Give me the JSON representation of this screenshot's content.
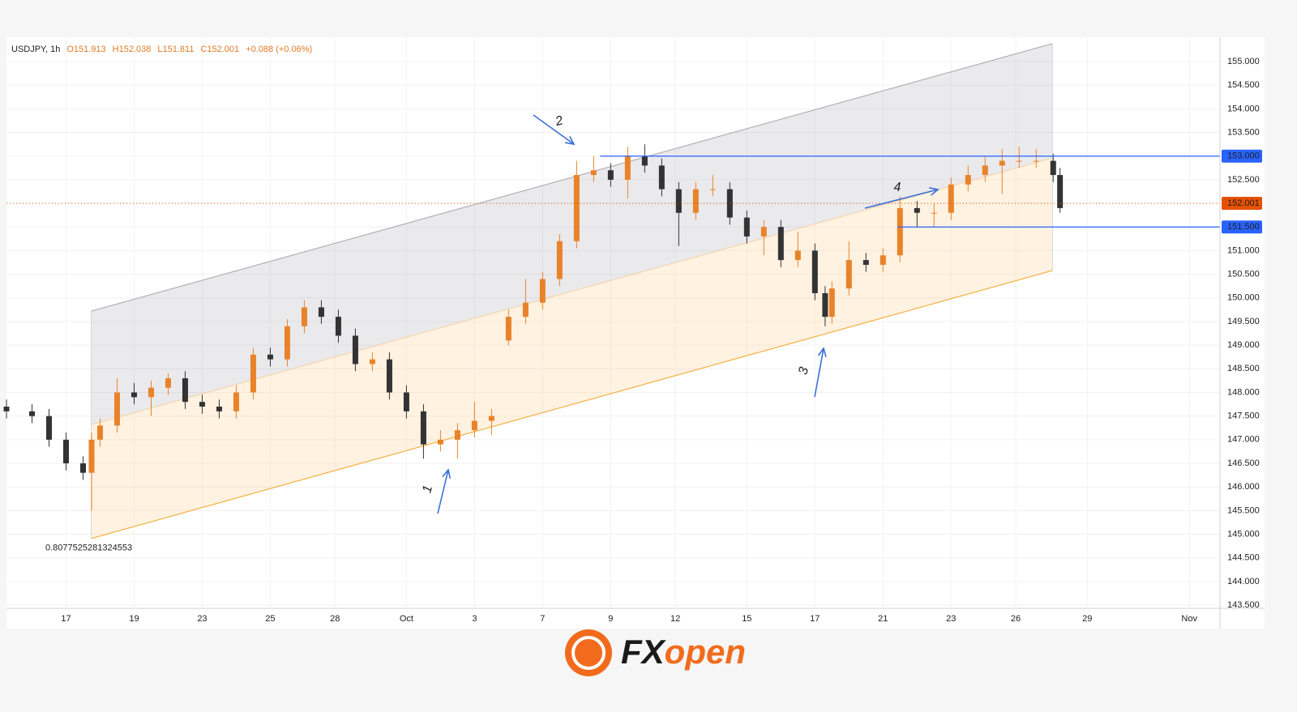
{
  "header": {
    "symbol": "USDJPY, 1h",
    "open": "O151.913",
    "high": "H152.038",
    "low": "L151.811",
    "close": "C152.001",
    "change": "+0.088 (+0.06%)"
  },
  "chart_data": {
    "type": "candlestick",
    "x": [
      -1.75,
      -1,
      -0.5,
      0,
      0.5,
      0.75,
      1,
      1.5,
      2,
      2.5,
      3,
      3.5,
      4,
      4.5,
      5,
      5.5,
      6,
      6.5,
      7,
      7.5,
      8,
      8.5,
      9,
      9.5,
      10,
      10.5,
      11,
      11.5,
      12,
      12.5,
      13,
      13.5,
      14,
      14.5,
      15,
      15.5,
      16,
      16.5,
      17,
      17.5,
      18,
      18.5,
      19,
      19.5,
      20,
      20.5,
      21,
      21.5,
      22,
      22.3,
      22.5,
      23,
      23.5,
      24,
      24.5,
      25,
      25.5,
      26,
      26.5,
      27,
      27.5,
      28,
      28.5,
      29,
      29.2
    ],
    "open": [
      147.7,
      147.6,
      147.5,
      147.0,
      146.5,
      146.3,
      147.0,
      147.3,
      148.0,
      147.9,
      148.1,
      148.3,
      147.8,
      147.7,
      147.6,
      148.0,
      148.8,
      148.7,
      149.4,
      149.8,
      149.6,
      149.2,
      148.6,
      148.7,
      148.0,
      147.6,
      146.9,
      147.0,
      147.2,
      147.4,
      149.1,
      149.6,
      149.9,
      150.4,
      151.2,
      152.6,
      152.7,
      152.5,
      153.0,
      152.8,
      152.3,
      151.8,
      152.3,
      152.3,
      151.7,
      151.3,
      151.5,
      150.8,
      151.0,
      150.1,
      149.6,
      150.2,
      150.8,
      150.7,
      150.9,
      151.9,
      151.8,
      151.8,
      152.4,
      152.6,
      152.8,
      152.9,
      152.9,
      152.9,
      152.6
    ],
    "high": [
      147.85,
      147.75,
      147.65,
      147.15,
      146.65,
      147.15,
      147.45,
      148.3,
      148.2,
      148.25,
      148.4,
      148.45,
      147.95,
      147.85,
      148.15,
      148.95,
      148.95,
      149.55,
      149.95,
      149.95,
      149.75,
      149.35,
      148.85,
      148.85,
      148.15,
      147.75,
      147.2,
      147.35,
      147.8,
      147.65,
      149.75,
      150.4,
      150.55,
      151.35,
      152.9,
      153.0,
      152.85,
      153.2,
      153.25,
      152.95,
      152.45,
      152.45,
      152.6,
      152.45,
      151.85,
      151.65,
      151.65,
      151.4,
      151.15,
      150.25,
      150.35,
      151.2,
      150.95,
      151.05,
      152.15,
      152.05,
      152.0,
      152.55,
      152.8,
      153.0,
      153.15,
      153.2,
      153.15,
      153.05,
      152.75
    ],
    "low": [
      147.45,
      147.35,
      146.85,
      146.35,
      146.15,
      145.5,
      146.85,
      147.15,
      147.75,
      147.5,
      147.95,
      147.65,
      147.55,
      147.45,
      147.45,
      147.85,
      148.55,
      148.55,
      149.25,
      149.45,
      149.05,
      148.45,
      148.45,
      147.85,
      147.45,
      146.6,
      146.75,
      146.6,
      147.05,
      147.1,
      149.0,
      149.45,
      149.75,
      150.25,
      151.05,
      152.45,
      152.35,
      152.1,
      152.65,
      152.15,
      151.1,
      151.65,
      152.15,
      151.55,
      151.15,
      150.9,
      150.65,
      150.65,
      149.95,
      149.4,
      149.45,
      150.05,
      150.55,
      150.55,
      150.75,
      151.5,
      151.5,
      151.65,
      152.25,
      152.45,
      152.2,
      152.75,
      152.75,
      152.45,
      151.8
    ],
    "close": [
      147.6,
      147.5,
      147.0,
      146.5,
      146.3,
      147.0,
      147.3,
      148.0,
      147.9,
      148.1,
      148.3,
      147.8,
      147.7,
      147.6,
      148.0,
      148.8,
      148.7,
      149.4,
      149.8,
      149.6,
      149.2,
      148.6,
      148.7,
      148.0,
      147.6,
      146.9,
      147.0,
      147.2,
      147.4,
      147.5,
      149.6,
      149.9,
      150.4,
      151.2,
      152.6,
      152.7,
      152.5,
      153.0,
      152.8,
      152.3,
      151.8,
      152.3,
      152.3,
      151.7,
      151.3,
      151.5,
      150.8,
      151.0,
      150.1,
      149.6,
      150.2,
      150.8,
      150.7,
      150.9,
      151.9,
      151.8,
      151.8,
      152.4,
      152.6,
      152.8,
      152.9,
      152.9,
      152.9,
      152.6,
      151.9
    ],
    "up_color": "#e8832a",
    "down_color": "#333333",
    "xlim": [
      -1.75,
      33.9
    ],
    "xticks": [
      {
        "value": 0,
        "label": "17"
      },
      {
        "value": 2,
        "label": "19"
      },
      {
        "value": 4,
        "label": "23"
      },
      {
        "value": 6,
        "label": "25"
      },
      {
        "value": 7.9,
        "label": "28"
      },
      {
        "value": 10,
        "label": "Oct"
      },
      {
        "value": 12,
        "label": "3"
      },
      {
        "value": 14,
        "label": "7"
      },
      {
        "value": 16,
        "label": "9"
      },
      {
        "value": 17.9,
        "label": "12"
      },
      {
        "value": 20,
        "label": "15"
      },
      {
        "value": 22,
        "label": "17"
      },
      {
        "value": 24,
        "label": "21"
      },
      {
        "value": 26,
        "label": "23"
      },
      {
        "value": 27.9,
        "label": "26"
      },
      {
        "value": 30,
        "label": "29"
      },
      {
        "value": 33,
        "label": "Nov"
      }
    ],
    "ylim": [
      143.45,
      155.48
    ],
    "yticks": [
      {
        "value": 143.5,
        "label": "143.500"
      },
      {
        "value": 144,
        "label": "144.000"
      },
      {
        "value": 144.5,
        "label": "144.500"
      },
      {
        "value": 145,
        "label": "145.000"
      },
      {
        "value": 145.5,
        "label": "145.500"
      },
      {
        "value": 146,
        "label": "146.000"
      },
      {
        "value": 146.5,
        "label": "146.500"
      },
      {
        "value": 147,
        "label": "147.000"
      },
      {
        "value": 147.5,
        "label": "147.500"
      },
      {
        "value": 148,
        "label": "148.000"
      },
      {
        "value": 148.5,
        "label": "148.500"
      },
      {
        "value": 149,
        "label": "149.000"
      },
      {
        "value": 149.5,
        "label": "149.500"
      },
      {
        "value": 150,
        "label": "150.000"
      },
      {
        "value": 150.5,
        "label": "150.500"
      },
      {
        "value": 151,
        "label": "151.000"
      },
      {
        "value": 151.5,
        "label": "151.500"
      },
      {
        "value": 152,
        "label": "152.000"
      },
      {
        "value": 152.5,
        "label": "152.500"
      },
      {
        "value": 153,
        "label": "153.000"
      },
      {
        "value": 153.5,
        "label": "153.500"
      },
      {
        "value": 154,
        "label": "154.000"
      },
      {
        "value": 154.5,
        "label": "154.500"
      },
      {
        "value": 155,
        "label": "155.000"
      }
    ],
    "grid": true,
    "channel": {
      "x": [
        0.74,
        28.98
      ],
      "upper": [
        149.72,
        155.38
      ],
      "middle": [
        147.32,
        152.96
      ],
      "lower": [
        144.91,
        150.58
      ],
      "label": "0.8077525281324553"
    },
    "levels": [
      {
        "value": 153,
        "label": "153.000",
        "x_start": 15.69,
        "color": "#2962ff"
      },
      {
        "value": 151.5,
        "label": "151.500",
        "x_start": 24.43,
        "color": "#2962ff"
      }
    ],
    "last_price": {
      "value": 152.001,
      "label": "152.001",
      "color": "#e65100"
    },
    "annotations": [
      {
        "label": "1"
      },
      {
        "label": "2"
      },
      {
        "label": "3"
      },
      {
        "label": "4"
      }
    ]
  },
  "brand": {
    "mark": "FX",
    "accent": "open"
  }
}
